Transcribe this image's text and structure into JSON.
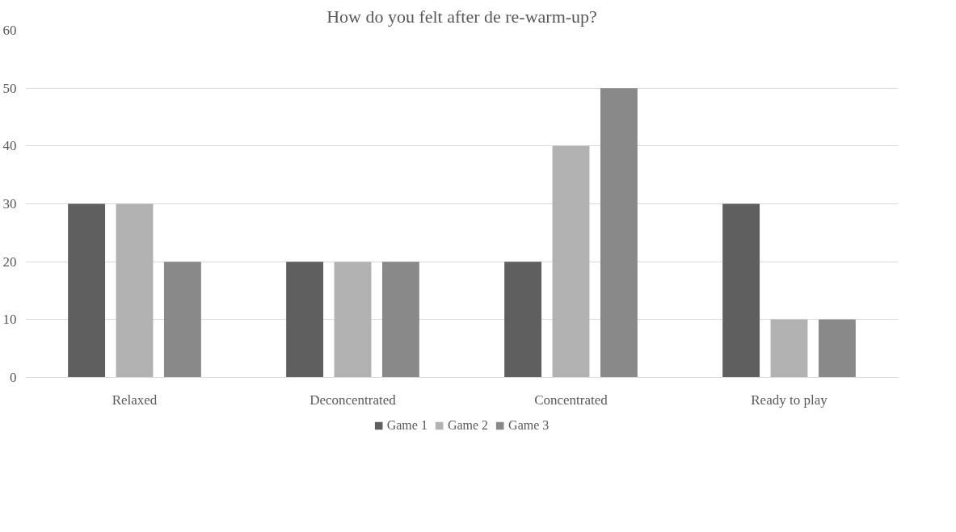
{
  "chart_data": {
    "type": "bar",
    "title": "How do you felt after de re-warm-up?",
    "categories": [
      "Relaxed",
      "Deconcentrated",
      "Concentrated",
      "Ready to play"
    ],
    "series": [
      {
        "name": "Game 1",
        "color": "#5f5f5f",
        "values": [
          30,
          20,
          20,
          30
        ]
      },
      {
        "name": "Game 2",
        "color": "#b2b2b2",
        "values": [
          30,
          20,
          40,
          10
        ]
      },
      {
        "name": "Game 3",
        "color": "#898989",
        "values": [
          20,
          20,
          50,
          10
        ]
      }
    ],
    "ylim": [
      0,
      60
    ],
    "yticks": [
      0,
      10,
      20,
      30,
      40,
      50,
      60
    ],
    "grid": "y",
    "legend": "bottom"
  }
}
